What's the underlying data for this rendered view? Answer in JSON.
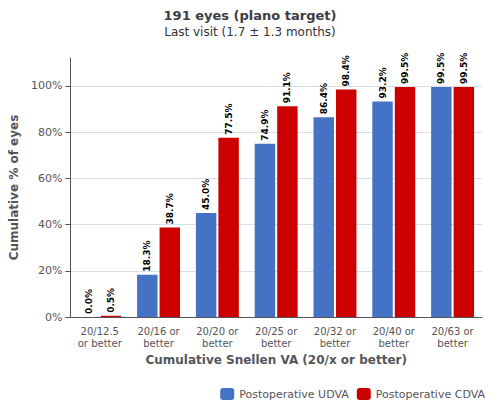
{
  "chart_data": {
    "type": "bar",
    "title": "191 eyes (plano target)",
    "subtitle": "Last visit (1.7 ± 1.3 months)",
    "xlabel": "Cumulative Snellen VA (20/x or better)",
    "ylabel": "Cumulative % of eyes",
    "categories": [
      "20/12.5\nor better",
      "20/16 or\nbetter",
      "20/20 or\nbetter",
      "20/25 or\nbetter",
      "20/32 or\nbetter",
      "20/40 or\nbetter",
      "20/63 or\nbetter"
    ],
    "series": [
      {
        "name": "Postoperative UDVA",
        "color": "#4472C4",
        "values": [
          0.0,
          18.3,
          45.0,
          74.9,
          86.4,
          93.2,
          99.5
        ],
        "value_labels": [
          "0.0%",
          "18.3%",
          "45.0%",
          "74.9%",
          "86.4%",
          "93.2%",
          "99.5%"
        ]
      },
      {
        "name": "Postoperative CDVA",
        "color": "#CC0000",
        "values": [
          0.5,
          38.7,
          77.5,
          91.1,
          98.4,
          99.5,
          99.5
        ],
        "value_labels": [
          "0.5%",
          "38.7%",
          "77.5%",
          "91.1%",
          "98.4%",
          "99.5%",
          "99.5%"
        ]
      }
    ],
    "ylim": [
      0,
      112
    ],
    "yticks": [
      {
        "value": 0,
        "label": "0%"
      },
      {
        "value": 20,
        "label": "20%"
      },
      {
        "value": 40,
        "label": "40%"
      },
      {
        "value": 60,
        "label": "60%"
      },
      {
        "value": 80,
        "label": "80%"
      },
      {
        "value": 100,
        "label": "100%"
      }
    ],
    "grid": true,
    "legend": "lower right",
    "data_labels": true
  }
}
